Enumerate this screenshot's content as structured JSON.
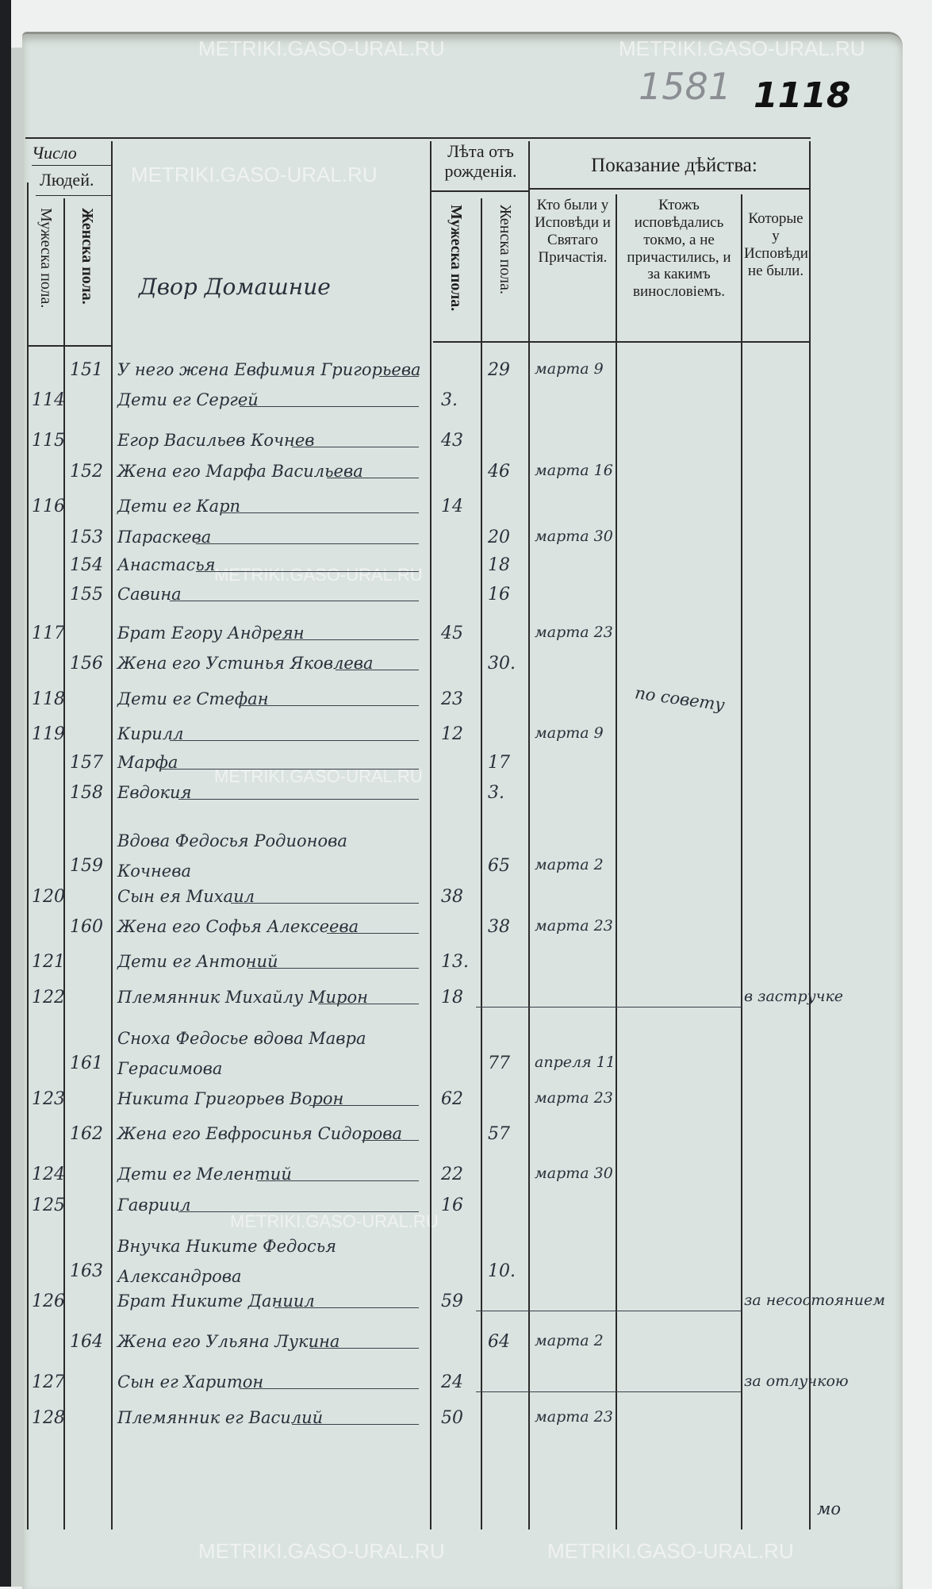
{
  "page_numbers": {
    "stamp": "1581",
    "ink": "1118"
  },
  "watermark": "METRIKI.GASO-URAL.RU",
  "header": {
    "count_title": "Число",
    "people": "Людей.",
    "male": "Мужеска пола.",
    "female": "Женска пола.",
    "age_title": "Лѣта отъ рожденія.",
    "age_male": "Мужеска пола.",
    "age_female": "Женска пола.",
    "action_title": "Показание дѣйства:",
    "col_confessed": "Кто были у Исповѣди и Святаго Причастія.",
    "col_confessed_only": "Ктожъ исповѣдались токмо, а не причастились, и за какимъ винословіемъ.",
    "col_absent": "Которые у Исповѣди не были.",
    "household": "Двор Домашние"
  },
  "rows": [
    {
      "m": "",
      "f": "151",
      "name": "У него жена Евфимия Григорьева",
      "am": "",
      "af": "29",
      "c1": "марта 9",
      "c2": "",
      "c3": ""
    },
    {
      "m": "114",
      "f": "",
      "name": "Дети ег Сергей",
      "am": "3.",
      "af": "",
      "c1": "",
      "c2": "",
      "c3": ""
    },
    {
      "m": "115",
      "f": "",
      "name": "Егор Васильев Кочнев",
      "am": "43",
      "af": "",
      "c1": "",
      "c2": "",
      "c3": ""
    },
    {
      "m": "",
      "f": "152",
      "name": "Жена его Марфа Васильева",
      "am": "",
      "af": "46",
      "c1": "марта 16",
      "c2": "",
      "c3": ""
    },
    {
      "m": "116",
      "f": "",
      "name": "Дети ег Карп",
      "am": "14",
      "af": "",
      "c1": "",
      "c2": "",
      "c3": ""
    },
    {
      "m": "",
      "f": "153",
      "name": "Параскева",
      "am": "",
      "af": "20",
      "c1": "марта 30",
      "c2": "",
      "c3": ""
    },
    {
      "m": "",
      "f": "154",
      "name": "Анастасья",
      "am": "",
      "af": "18",
      "c1": "",
      "c2": "",
      "c3": ""
    },
    {
      "m": "",
      "f": "155",
      "name": "Савина",
      "am": "",
      "af": "16",
      "c1": "",
      "c2": "",
      "c3": ""
    },
    {
      "m": "117",
      "f": "",
      "name": "Брат Егору Андреян",
      "am": "45",
      "af": "",
      "c1": "марта 23",
      "c2": "",
      "c3": ""
    },
    {
      "m": "",
      "f": "156",
      "name": "Жена его Устинья Яковлева",
      "am": "",
      "af": "30.",
      "c1": "",
      "c2": "",
      "c3": ""
    },
    {
      "m": "118",
      "f": "",
      "name": "Дети ег Стефан",
      "am": "23",
      "af": "",
      "c1": "",
      "c2": "по совету",
      "c3": ""
    },
    {
      "m": "119",
      "f": "",
      "name": "Кирилл",
      "am": "12",
      "af": "",
      "c1": "марта 9",
      "c2": "",
      "c3": ""
    },
    {
      "m": "",
      "f": "157",
      "name": "Марфа",
      "am": "",
      "af": "17",
      "c1": "",
      "c2": "",
      "c3": ""
    },
    {
      "m": "",
      "f": "158",
      "name": "Евдокия",
      "am": "",
      "af": "3.",
      "c1": "",
      "c2": "",
      "c3": ""
    },
    {
      "m": "",
      "f": "159",
      "name": "Вдова Федосья Родионова Кочнева",
      "am": "",
      "af": "65",
      "c1": "марта 2",
      "c2": "",
      "c3": ""
    },
    {
      "m": "120",
      "f": "",
      "name": "Сын ея Михаил",
      "am": "38",
      "af": "",
      "c1": "",
      "c2": "",
      "c3": ""
    },
    {
      "m": "",
      "f": "160",
      "name": "Жена его Софья Алексеева",
      "am": "",
      "af": "38",
      "c1": "марта 23",
      "c2": "",
      "c3": ""
    },
    {
      "m": "121",
      "f": "",
      "name": "Дети ег Антоний",
      "am": "13.",
      "af": "",
      "c1": "",
      "c2": "",
      "c3": ""
    },
    {
      "m": "122",
      "f": "",
      "name": "Племянник Михайлу Мирон",
      "am": "18",
      "af": "",
      "c1": "",
      "c2": "",
      "c3": "в застручке"
    },
    {
      "m": "",
      "f": "161",
      "name": "Сноха Федосье вдова Мавра Герасимова",
      "am": "",
      "af": "77",
      "c1": "апреля 11",
      "c2": "",
      "c3": ""
    },
    {
      "m": "123",
      "f": "",
      "name": "Никита Григорьев Ворон",
      "am": "62",
      "af": "",
      "c1": "марта 23",
      "c2": "",
      "c3": ""
    },
    {
      "m": "",
      "f": "162",
      "name": "Жена его Евфросинья Сидорова",
      "am": "",
      "af": "57",
      "c1": "",
      "c2": "",
      "c3": ""
    },
    {
      "m": "124",
      "f": "",
      "name": "Дети ег Мелентий",
      "am": "22",
      "af": "",
      "c1": "марта 30",
      "c2": "",
      "c3": ""
    },
    {
      "m": "125",
      "f": "",
      "name": "Гавриил",
      "am": "16",
      "af": "",
      "c1": "",
      "c2": "",
      "c3": ""
    },
    {
      "m": "",
      "f": "163",
      "name": "Внучка Никите Федосья Александрова",
      "am": "",
      "af": "10.",
      "c1": "",
      "c2": "",
      "c3": ""
    },
    {
      "m": "126",
      "f": "",
      "name": "Брат Никите Даниил",
      "am": "59",
      "af": "",
      "c1": "",
      "c2": "",
      "c3": "за несостоянием"
    },
    {
      "m": "",
      "f": "164",
      "name": "Жена его Ульяна Лукина",
      "am": "",
      "af": "64",
      "c1": "марта 2",
      "c2": "",
      "c3": ""
    },
    {
      "m": "127",
      "f": "",
      "name": "Сын ег Харитон",
      "am": "24",
      "af": "",
      "c1": "",
      "c2": "",
      "c3": "за отлучкою"
    },
    {
      "m": "128",
      "f": "",
      "name": "Племянник ег Василий",
      "am": "50",
      "af": "",
      "c1": "марта 23",
      "c2": "",
      "c3": ""
    }
  ],
  "footer_note": "мо",
  "colors": {
    "paper": "#dbe3e0",
    "ink": "#2b2f3a",
    "print": "#1f1f1f"
  }
}
